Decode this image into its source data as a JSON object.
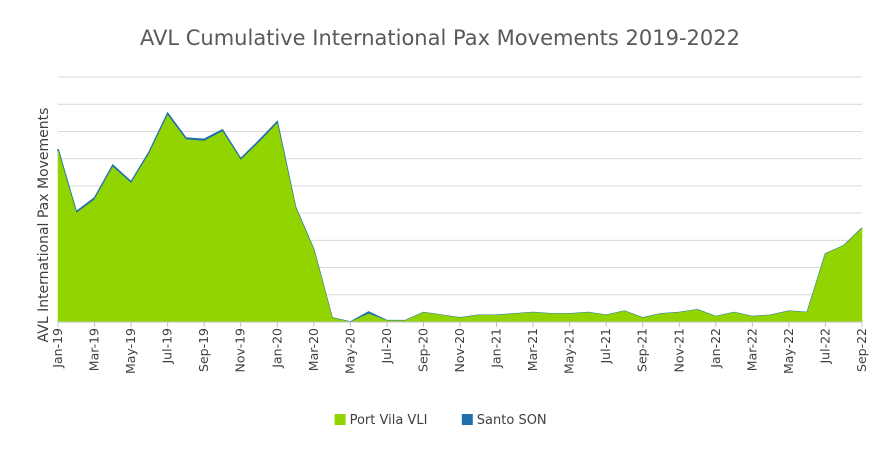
{
  "chart_data": {
    "type": "area",
    "title": "AVL Cumulative International Pax Movements 2019-2022",
    "xlabel": "",
    "ylabel": "AVL International Pax Movements",
    "x": [
      "Jan-19",
      "Feb-19",
      "Mar-19",
      "Apr-19",
      "May-19",
      "Jun-19",
      "Jul-19",
      "Aug-19",
      "Sep-19",
      "Oct-19",
      "Nov-19",
      "Dec-19",
      "Jan-20",
      "Feb-20",
      "Mar-20",
      "Apr-20",
      "May-20",
      "Jun-20",
      "Jul-20",
      "Aug-20",
      "Sep-20",
      "Oct-20",
      "Nov-20",
      "Dec-20",
      "Jan-21",
      "Feb-21",
      "Mar-21",
      "Apr-21",
      "May-21",
      "Jun-21",
      "Jul-21",
      "Aug-21",
      "Sep-21",
      "Oct-21",
      "Nov-21",
      "Dec-21",
      "Jan-22",
      "Feb-22",
      "Mar-22",
      "Apr-22",
      "May-22",
      "Jun-22",
      "Jul-22",
      "Aug-22",
      "Sep-22"
    ],
    "tick_labels": [
      "Jan-19",
      "Mar-19",
      "May-19",
      "Jul-19",
      "Sep-19",
      "Nov-19",
      "Jan-20",
      "Mar-20",
      "May-20",
      "Jul-20",
      "Sep-20",
      "Nov-20",
      "Jan-21",
      "Mar-21",
      "May-21",
      "Jul-21",
      "Sep-21",
      "Nov-21",
      "Jan-22",
      "Mar-22",
      "May-22",
      "Jul-22",
      "Sep-22"
    ],
    "ylim": [
      0,
      9
    ],
    "grid": true,
    "y_tick_labels_shown": false,
    "legend_position": "bottom",
    "series": [
      {
        "name": "Port Vila VLI",
        "color": "#92D400",
        "values": [
          6.3,
          4.0,
          4.5,
          5.7,
          5.1,
          6.2,
          7.6,
          6.7,
          6.65,
          7.0,
          5.95,
          6.6,
          7.3,
          4.2,
          2.65,
          0.15,
          0.0,
          0.3,
          0.05,
          0.05,
          0.35,
          0.25,
          0.15,
          0.25,
          0.25,
          0.3,
          0.35,
          0.3,
          0.3,
          0.35,
          0.25,
          0.4,
          0.15,
          0.3,
          0.35,
          0.45,
          0.2,
          0.35,
          0.2,
          0.25,
          0.4,
          0.35,
          2.5,
          2.8,
          3.45
        ]
      },
      {
        "name": "Santo SON",
        "color": "#1F6FAF",
        "values": [
          0.05,
          0.05,
          0.06,
          0.06,
          0.05,
          0.06,
          0.07,
          0.06,
          0.06,
          0.06,
          0.05,
          0.06,
          0.06,
          0.02,
          0.01,
          0.0,
          0.0,
          0.07,
          0.0,
          0.0,
          0.0,
          0.0,
          0.0,
          0.0,
          0.0,
          0.0,
          0.0,
          0.0,
          0.0,
          0.0,
          0.0,
          0.0,
          0.0,
          0.0,
          0.0,
          0.0,
          0.0,
          0.0,
          0.0,
          0.0,
          0.0,
          0.0,
          0.0,
          0.0,
          0.0
        ]
      }
    ]
  }
}
